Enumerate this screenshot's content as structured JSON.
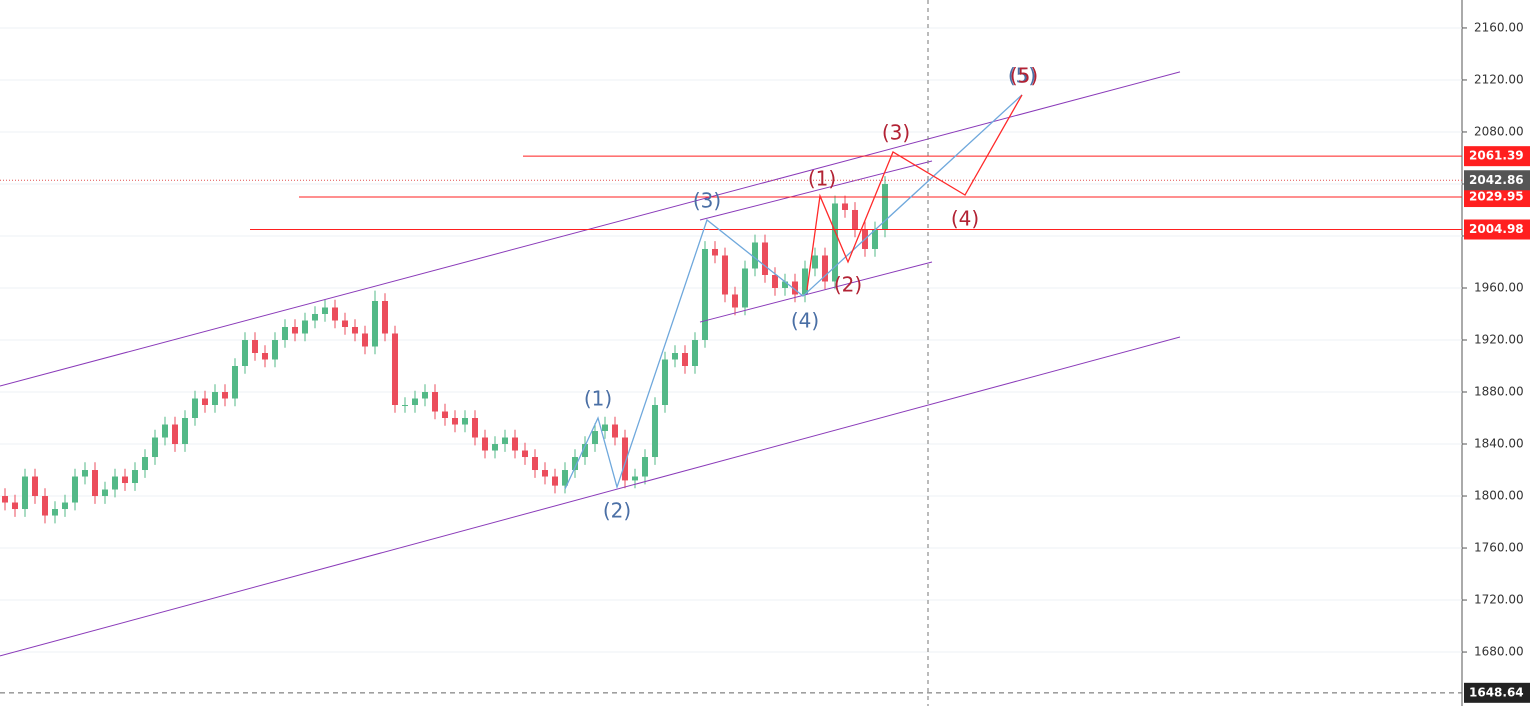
{
  "chart_data": {
    "type": "candlestick",
    "xlim": [
      -0.5,
      145.7
    ],
    "ylim": [
      1638.5,
      2181.5
    ],
    "yticks": [
      {
        "value": 1680,
        "label": "1680.00"
      },
      {
        "value": 1720,
        "label": "1720.00"
      },
      {
        "value": 1760,
        "label": "1760.00"
      },
      {
        "value": 1800,
        "label": "1800.00"
      },
      {
        "value": 1840,
        "label": "1840.00"
      },
      {
        "value": 1880,
        "label": "1880.00"
      },
      {
        "value": 1920,
        "label": "1920.00"
      },
      {
        "value": 1960,
        "label": "1960.00"
      },
      {
        "value": 2000,
        "label": "2000.00"
      },
      {
        "value": 2040,
        "label": "2040.00"
      },
      {
        "value": 2080,
        "label": "2080.00"
      },
      {
        "value": 2120,
        "label": "2120.00"
      },
      {
        "value": 2160,
        "label": "2160.00"
      }
    ],
    "grid": true,
    "up_color": "#53b987",
    "down_color": "#eb4d5c",
    "ohlc": [
      [
        1800,
        1806,
        1789,
        1795
      ],
      [
        1795,
        1801,
        1784,
        1790
      ],
      [
        1790,
        1821,
        1784,
        1815
      ],
      [
        1815,
        1821,
        1794,
        1800
      ],
      [
        1800,
        1806,
        1779,
        1785
      ],
      [
        1785,
        1796,
        1779,
        1790
      ],
      [
        1790,
        1801,
        1784,
        1795
      ],
      [
        1795,
        1821,
        1789,
        1815
      ],
      [
        1815,
        1826,
        1809,
        1820
      ],
      [
        1820,
        1826,
        1794,
        1800
      ],
      [
        1800,
        1811,
        1794,
        1805
      ],
      [
        1805,
        1821,
        1799,
        1815
      ],
      [
        1815,
        1821,
        1804,
        1810
      ],
      [
        1810,
        1826,
        1804,
        1820
      ],
      [
        1820,
        1836,
        1814,
        1830
      ],
      [
        1830,
        1851,
        1824,
        1845
      ],
      [
        1845,
        1861,
        1839,
        1855
      ],
      [
        1855,
        1861,
        1834,
        1840
      ],
      [
        1840,
        1866,
        1834,
        1860
      ],
      [
        1860,
        1881,
        1854,
        1875
      ],
      [
        1875,
        1881,
        1864,
        1870
      ],
      [
        1870,
        1886,
        1864,
        1880
      ],
      [
        1880,
        1886,
        1869,
        1875
      ],
      [
        1875,
        1906,
        1869,
        1900
      ],
      [
        1900,
        1926,
        1894,
        1920
      ],
      [
        1920,
        1926,
        1904,
        1910
      ],
      [
        1910,
        1916,
        1899,
        1905
      ],
      [
        1905,
        1926,
        1899,
        1920
      ],
      [
        1920,
        1936,
        1914,
        1930
      ],
      [
        1930,
        1936,
        1919,
        1925
      ],
      [
        1925,
        1941,
        1919,
        1935
      ],
      [
        1935,
        1946,
        1929,
        1940
      ],
      [
        1940,
        1951,
        1934,
        1945
      ],
      [
        1945,
        1951,
        1929,
        1935
      ],
      [
        1935,
        1941,
        1924,
        1930
      ],
      [
        1930,
        1936,
        1919,
        1925
      ],
      [
        1925,
        1931,
        1909,
        1915
      ],
      [
        1915,
        1958,
        1909,
        1950
      ],
      [
        1950,
        1956,
        1919,
        1925
      ],
      [
        1925,
        1931,
        1864,
        1870
      ],
      [
        1870,
        1876,
        1864,
        1870
      ],
      [
        1870,
        1881,
        1864,
        1875
      ],
      [
        1875,
        1886,
        1869,
        1880
      ],
      [
        1880,
        1886,
        1859,
        1865
      ],
      [
        1865,
        1871,
        1854,
        1860
      ],
      [
        1860,
        1866,
        1849,
        1855
      ],
      [
        1855,
        1866,
        1849,
        1860
      ],
      [
        1860,
        1866,
        1839,
        1845
      ],
      [
        1845,
        1851,
        1829,
        1835
      ],
      [
        1835,
        1846,
        1829,
        1840
      ],
      [
        1840,
        1851,
        1834,
        1845
      ],
      [
        1845,
        1851,
        1829,
        1835
      ],
      [
        1835,
        1841,
        1824,
        1830
      ],
      [
        1830,
        1836,
        1814,
        1820
      ],
      [
        1820,
        1826,
        1809,
        1815
      ],
      [
        1815,
        1821,
        1802,
        1808
      ],
      [
        1808,
        1826,
        1802,
        1820
      ],
      [
        1820,
        1836,
        1814,
        1830
      ],
      [
        1830,
        1846,
        1824,
        1840
      ],
      [
        1840,
        1856,
        1834,
        1850
      ],
      [
        1850,
        1861,
        1844,
        1855
      ],
      [
        1855,
        1861,
        1839,
        1845
      ],
      [
        1845,
        1851,
        1806,
        1812
      ],
      [
        1812,
        1821,
        1806,
        1815
      ],
      [
        1815,
        1836,
        1809,
        1830
      ],
      [
        1830,
        1876,
        1824,
        1870
      ],
      [
        1870,
        1911,
        1864,
        1905
      ],
      [
        1905,
        1916,
        1899,
        1910
      ],
      [
        1910,
        1916,
        1894,
        1900
      ],
      [
        1900,
        1926,
        1894,
        1920
      ],
      [
        1920,
        1996,
        1914,
        1990
      ],
      [
        1990,
        1996,
        1979,
        1985
      ],
      [
        1985,
        1991,
        1949,
        1955
      ],
      [
        1955,
        1961,
        1939,
        1945
      ],
      [
        1945,
        1981,
        1939,
        1975
      ],
      [
        1975,
        2001,
        1969,
        1995
      ],
      [
        1995,
        2001,
        1964,
        1970
      ],
      [
        1970,
        1976,
        1954,
        1960
      ],
      [
        1960,
        1971,
        1954,
        1965
      ],
      [
        1965,
        1971,
        1949,
        1955
      ],
      [
        1955,
        1981,
        1949,
        1975
      ],
      [
        1975,
        1991,
        1969,
        1985
      ],
      [
        1985,
        1991,
        1959,
        1965
      ],
      [
        1965,
        2031,
        1959,
        2025
      ],
      [
        2025,
        2031,
        2014,
        2020
      ],
      [
        2020,
        2026,
        1999,
        2005
      ],
      [
        2005,
        2011,
        1984,
        1990
      ],
      [
        1990,
        2011,
        1984,
        2005
      ],
      [
        2005,
        2046,
        1999,
        2040
      ]
    ],
    "trendlines": [
      {
        "color": "#8a3ab9",
        "x": [
          -0.5,
          117.5
        ],
        "y": [
          1884.6,
          2126.2
        ]
      },
      {
        "color": "#8a3ab9",
        "x": [
          -0.5,
          117.5
        ],
        "y": [
          1677,
          1922.3
        ]
      },
      {
        "color": "#8a3ab9",
        "x": [
          69.5,
          92.7
        ],
        "y": [
          2012.3,
          2057.7
        ]
      },
      {
        "color": "#8a3ab9",
        "x": [
          69.5,
          92.7
        ],
        "y": [
          1933.8,
          1980
        ]
      }
    ],
    "levels": [
      {
        "value": 2061.39,
        "from": 51.8,
        "color": "#ff1f1f",
        "tag": "#ff1f1f"
      },
      {
        "value": 2029.95,
        "from": 29.4,
        "color": "#ff1f1f",
        "tag": "#ff1f1f"
      },
      {
        "value": 2004.98,
        "from": 24.5,
        "color": "#ff1f1f",
        "tag": "#ff1f1f"
      },
      {
        "value": 2042.86,
        "from": -0.5,
        "color": "#e05050",
        "tag": "#555555",
        "dotted": true
      },
      {
        "value": 1648.64,
        "from": -0.5,
        "color": "#666666",
        "tag": "#222222",
        "dashed": true
      }
    ],
    "crosshair_x": 92.3,
    "waves": [
      {
        "color": "#6fa8dc",
        "label_color": "#4a6fa5",
        "x": [
          56,
          59.3,
          61.2,
          70.2,
          79.8,
          101.7
        ],
        "y": [
          1805.4,
          1860,
          1806.9,
          2012.3,
          1953.8,
          2108.5
        ],
        "labels": [
          {
            "text": "(1)",
            "x": 59.3,
            "y": 1873.8
          },
          {
            "text": "(2)",
            "x": 61.2,
            "y": 1787.7
          },
          {
            "text": "(3)",
            "x": 70.2,
            "y": 2026.2
          },
          {
            "text": "(4)",
            "x": 80,
            "y": 1933.8
          },
          {
            "text": "(5)",
            "x": 101.7,
            "y": 2122.3
          }
        ]
      },
      {
        "color": "#ff2a2a",
        "label_color": "#b22234",
        "x": [
          80.2,
          81.5,
          84.3,
          88.8,
          96,
          101.7
        ],
        "y": [
          1958.5,
          2030.8,
          1980,
          2064.6,
          2031.5,
          2108.5
        ],
        "labels": [
          {
            "text": "(1)",
            "x": 81.7,
            "y": 2043.1
          },
          {
            "text": "(2)",
            "x": 84.3,
            "y": 1961.5
          },
          {
            "text": "(3)",
            "x": 89.1,
            "y": 2078.5
          },
          {
            "text": "(4)",
            "x": 96,
            "y": 2012.3
          },
          {
            "text": "(5)",
            "x": 101.9,
            "y": 2122.3
          }
        ]
      }
    ]
  }
}
